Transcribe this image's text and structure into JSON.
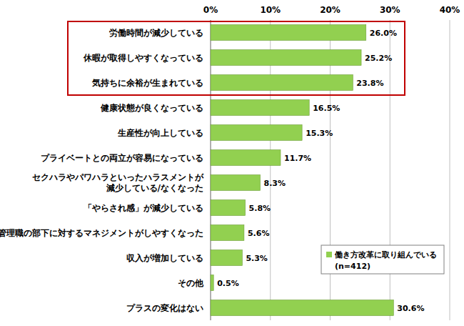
{
  "chart_data": {
    "type": "bar",
    "orientation": "horizontal",
    "categories": [
      "労働時間が減少している",
      "休暇が取得しやすくなっている",
      "気持ちに余裕が生まれている",
      "健康状態が良くなっている",
      "生産性が向上している",
      "プライベートとの両立が容易になっている",
      "セクハラやパワハラといったハラスメントが\n減少している/なくなった",
      "「やらされ感」が減少している",
      "管理職の部下に対するマネジメントがしやすくなった",
      "収入が増加している",
      "その他",
      "プラスの変化はない"
    ],
    "series": [
      {
        "name": "働き方改革に取り組んでいる\n(n=412)",
        "color": "#92d050",
        "values": [
          26.0,
          25.2,
          23.8,
          16.5,
          15.3,
          11.7,
          8.3,
          5.8,
          5.6,
          5.3,
          0.5,
          30.6
        ],
        "value_labels": [
          "26.0%",
          "25.2%",
          "23.8%",
          "16.5%",
          "15.3%",
          "11.7%",
          "8.3%",
          "5.8%",
          "5.6%",
          "5.3%",
          "0.5%",
          "30.6%"
        ]
      }
    ],
    "xlim": [
      0,
      40
    ],
    "xticks": [
      {
        "value": 0,
        "label": "0%"
      },
      {
        "value": 10,
        "label": "10%"
      },
      {
        "value": 20,
        "label": "20%"
      },
      {
        "value": 30,
        "label": "30%"
      },
      {
        "value": 40,
        "label": "40%"
      }
    ],
    "grid": true,
    "data_labels": true,
    "legend": "lower right"
  }
}
